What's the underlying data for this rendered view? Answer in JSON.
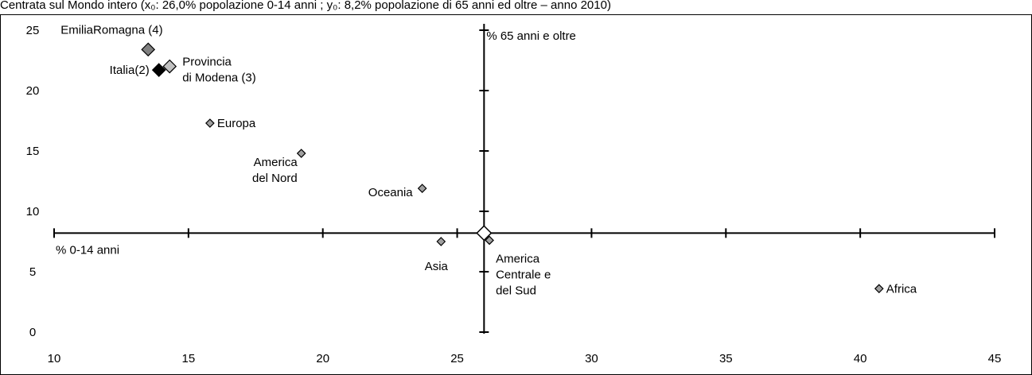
{
  "chart_data": {
    "type": "scatter",
    "title": "Centrata sul Mondo intero (x₀: 26,0% popolazione 0-14 anni ; y₀: 8,2% popolazione di 65 anni ed oltre – anno 2010)",
    "xlim": [
      10,
      45
    ],
    "ylim": [
      0,
      25
    ],
    "x_ticks": [
      10,
      15,
      20,
      25,
      30,
      35,
      40,
      45
    ],
    "y_ticks": [
      0,
      5,
      10,
      15,
      20,
      25
    ],
    "center": {
      "x": 26.0,
      "y": 8.2
    },
    "center_axis_labels": {
      "x": "% 0-14 anni",
      "y": "% 65 anni e oltre"
    },
    "grid": false,
    "points": [
      {
        "label_lines": [
          "EmiliaRomagna (4)"
        ],
        "x": 13.5,
        "y": 23.4,
        "marker": "large",
        "fill": "#808080",
        "label_anchor": "start"
      },
      {
        "label_lines": [
          "Italia(2)"
        ],
        "x": 13.9,
        "y": 21.7,
        "marker": "large",
        "fill": "#000000",
        "label_anchor": "end"
      },
      {
        "label_lines": [
          "Provincia",
          "di Modena (3)"
        ],
        "x": 14.3,
        "y": 22.0,
        "marker": "large",
        "fill": "#c0c0c0",
        "label_anchor": "start"
      },
      {
        "label_lines": [
          "Europa"
        ],
        "x": 15.8,
        "y": 17.3,
        "marker": "small",
        "fill": "#a0a0a0",
        "label_anchor": "start"
      },
      {
        "label_lines": [
          "America",
          "del Nord"
        ],
        "x": 19.2,
        "y": 14.8,
        "marker": "small",
        "fill": "#a0a0a0",
        "label_anchor": "middle"
      },
      {
        "label_lines": [
          "Oceania"
        ],
        "x": 23.7,
        "y": 11.9,
        "marker": "small",
        "fill": "#a0a0a0",
        "label_anchor": "end"
      },
      {
        "label_lines": [
          "Asia"
        ],
        "x": 24.4,
        "y": 7.5,
        "marker": "small",
        "fill": "#a0a0a0",
        "label_anchor": "middle"
      },
      {
        "label_lines": [
          "America",
          "Centrale e",
          "del Sud"
        ],
        "x": 26.2,
        "y": 7.6,
        "marker": "small",
        "fill": "#a0a0a0",
        "label_anchor": "start"
      },
      {
        "label_lines": [
          "Africa"
        ],
        "x": 40.7,
        "y": 3.6,
        "marker": "small",
        "fill": "#a0a0a0",
        "label_anchor": "start"
      }
    ]
  }
}
